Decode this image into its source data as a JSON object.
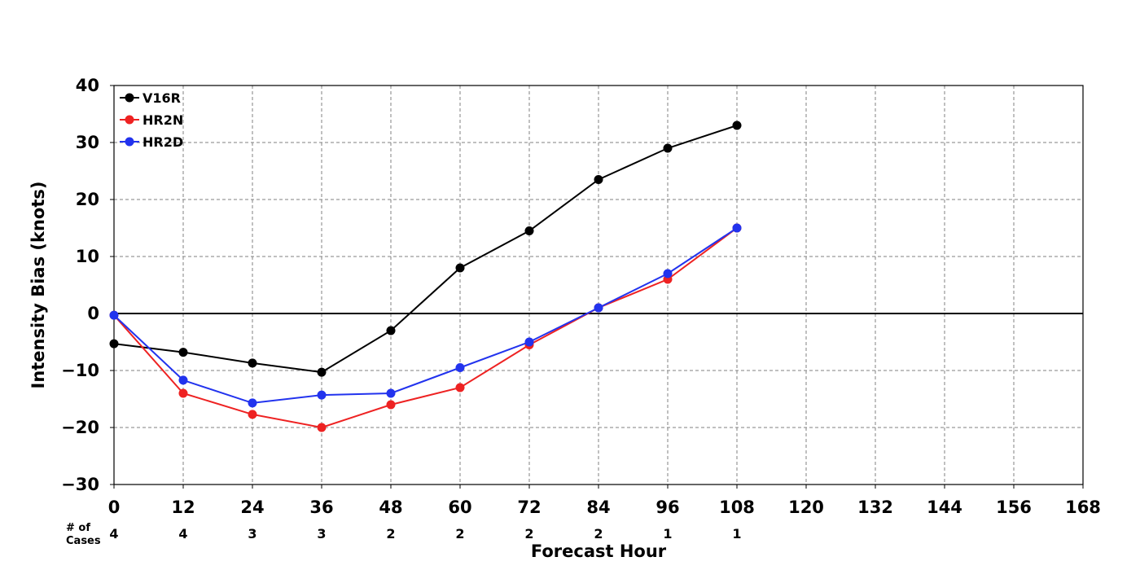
{
  "chart_data": {
    "type": "line",
    "title": "",
    "xlabel": "Forecast Hour",
    "ylabel": "Intensity Bias (knots)",
    "xlim": [
      0,
      168
    ],
    "ylim": [
      -30,
      40
    ],
    "x_ticks": [
      0,
      12,
      24,
      36,
      48,
      60,
      72,
      84,
      96,
      108,
      120,
      132,
      144,
      156,
      168
    ],
    "y_ticks": [
      -30,
      -20,
      -10,
      0,
      10,
      20,
      30,
      40
    ],
    "x_tick_labels": [
      "0",
      "12",
      "24",
      "36",
      "48",
      "60",
      "72",
      "84",
      "96",
      "108",
      "120",
      "132",
      "144",
      "156",
      "168"
    ],
    "y_tick_labels": [
      "−30",
      "−20",
      "−10",
      "0",
      "10",
      "20",
      "30",
      "40"
    ],
    "grid": true,
    "zero_line": true,
    "legend_position": "top-left",
    "x": [
      0,
      12,
      24,
      36,
      48,
      60,
      72,
      84,
      96,
      108
    ],
    "series": [
      {
        "name": "V16R",
        "color": "#000000",
        "values": [
          -5.3,
          -6.8,
          -8.7,
          -10.3,
          -3.0,
          8.0,
          14.5,
          23.5,
          29.0,
          33.0
        ]
      },
      {
        "name": "HR2N",
        "color": "#ee2222",
        "values": [
          -0.3,
          -14.0,
          -17.7,
          -20.0,
          -16.0,
          -13.0,
          -5.5,
          1.0,
          6.0,
          15.0
        ]
      },
      {
        "name": "HR2D",
        "color": "#2233ee",
        "values": [
          -0.3,
          -11.7,
          -15.7,
          -14.3,
          -14.0,
          -9.5,
          -5.0,
          1.0,
          7.0,
          15.0
        ]
      }
    ],
    "cases": {
      "label_line1": "# of",
      "label_line2": "Cases",
      "x": [
        0,
        12,
        24,
        36,
        48,
        60,
        72,
        84,
        96,
        108
      ],
      "counts": [
        "4",
        "4",
        "3",
        "3",
        "2",
        "2",
        "2",
        "2",
        "1",
        "1"
      ]
    }
  }
}
